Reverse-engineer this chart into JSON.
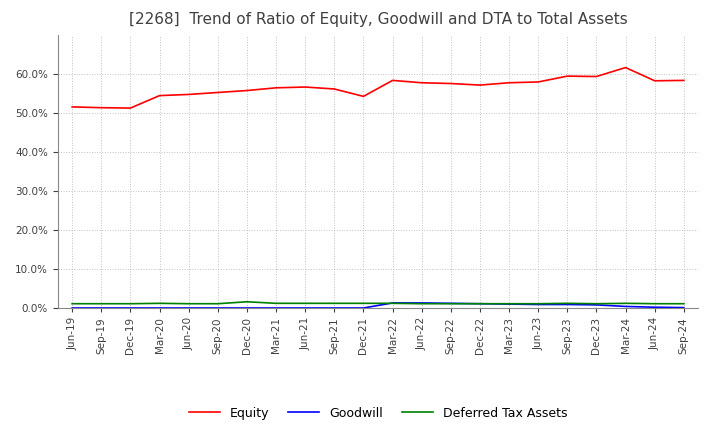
{
  "title": "[2268]  Trend of Ratio of Equity, Goodwill and DTA to Total Assets",
  "x_labels": [
    "Jun-19",
    "Sep-19",
    "Dec-19",
    "Mar-20",
    "Jun-20",
    "Sep-20",
    "Dec-20",
    "Mar-21",
    "Jun-21",
    "Sep-21",
    "Dec-21",
    "Mar-22",
    "Jun-22",
    "Sep-22",
    "Dec-22",
    "Mar-23",
    "Jun-23",
    "Sep-23",
    "Dec-23",
    "Mar-24",
    "Jun-24",
    "Sep-24"
  ],
  "equity": [
    0.516,
    0.514,
    0.513,
    0.545,
    0.548,
    0.553,
    0.558,
    0.565,
    0.567,
    0.562,
    0.543,
    0.584,
    0.578,
    0.576,
    0.572,
    0.578,
    0.58,
    0.595,
    0.594,
    0.617,
    0.583,
    0.584
  ],
  "goodwill": [
    0.0,
    0.0,
    0.0,
    0.0,
    0.0,
    0.0,
    0.0,
    0.0,
    0.0,
    0.0,
    0.0,
    0.013,
    0.013,
    0.012,
    0.011,
    0.01,
    0.009,
    0.009,
    0.008,
    0.004,
    0.002,
    0.001
  ],
  "dta": [
    0.011,
    0.011,
    0.011,
    0.012,
    0.011,
    0.011,
    0.016,
    0.012,
    0.012,
    0.012,
    0.012,
    0.012,
    0.011,
    0.011,
    0.011,
    0.011,
    0.011,
    0.012,
    0.011,
    0.012,
    0.011,
    0.011
  ],
  "equity_color": "#ff0000",
  "goodwill_color": "#0000ff",
  "dta_color": "#008000",
  "ylim": [
    0.0,
    0.7
  ],
  "yticks": [
    0.0,
    0.1,
    0.2,
    0.3,
    0.4,
    0.5,
    0.6
  ],
  "background_color": "#ffffff",
  "grid_color": "#bbbbbb",
  "title_fontsize": 11,
  "title_color": "#404040",
  "tick_fontsize": 7.5,
  "legend_fontsize": 9
}
